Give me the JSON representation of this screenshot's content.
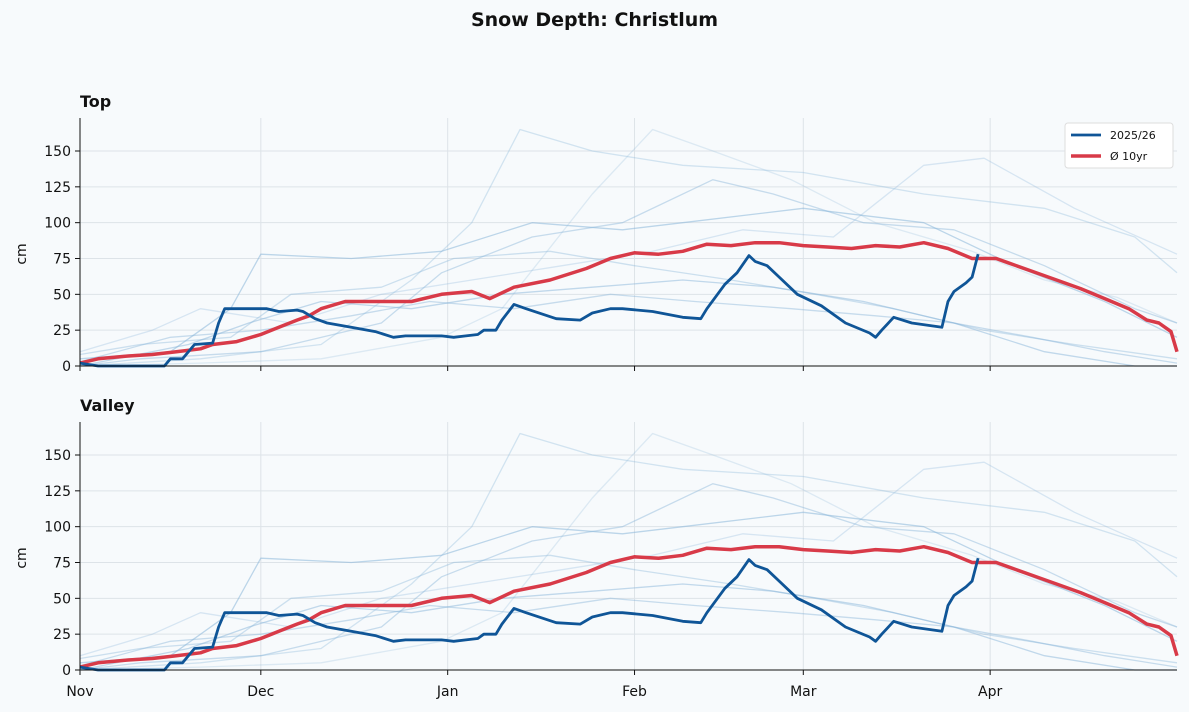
{
  "chart_data": {
    "type": "line",
    "title": "Snow Depth: Christlum",
    "ylabel": "cm",
    "ylim": [
      0,
      173
    ],
    "xlim": [
      "Nov 1",
      "Apr 30"
    ],
    "x_ticks": [
      "Nov",
      "Dec",
      "Jan",
      "Feb",
      "Mar",
      "Apr"
    ],
    "x_tick_days": [
      0,
      30,
      61,
      92,
      120,
      151
    ],
    "y_ticks": [
      0,
      25,
      50,
      75,
      100,
      125,
      150
    ],
    "grid": true,
    "legend_position": "top-right",
    "x_unit": "days since Nov 1",
    "panels": [
      {
        "title": "Top"
      },
      {
        "title": "Valley"
      }
    ],
    "colors": {
      "current": "#0f5597",
      "average": "#d83a48",
      "history": "#8ab6d9"
    },
    "series": [
      {
        "name": "2025/26",
        "role": "current",
        "points": [
          [
            0,
            2
          ],
          [
            3,
            0
          ],
          [
            14,
            0
          ],
          [
            15,
            5
          ],
          [
            17,
            5
          ],
          [
            19,
            15
          ],
          [
            22,
            16
          ],
          [
            23,
            30
          ],
          [
            24,
            40
          ],
          [
            28,
            40
          ],
          [
            31,
            40
          ],
          [
            33,
            38
          ],
          [
            36,
            39
          ],
          [
            37,
            38
          ],
          [
            39,
            33
          ],
          [
            41,
            30
          ],
          [
            45,
            27
          ],
          [
            49,
            24
          ],
          [
            52,
            20
          ],
          [
            54,
            21
          ],
          [
            60,
            21
          ],
          [
            62,
            20
          ],
          [
            64,
            21
          ],
          [
            66,
            22
          ],
          [
            67,
            25
          ],
          [
            69,
            25
          ],
          [
            70,
            32
          ],
          [
            72,
            43
          ],
          [
            74,
            40
          ],
          [
            79,
            33
          ],
          [
            83,
            32
          ],
          [
            85,
            37
          ],
          [
            88,
            40
          ],
          [
            90,
            40
          ],
          [
            95,
            38
          ],
          [
            100,
            34
          ],
          [
            103,
            33
          ],
          [
            104,
            40
          ],
          [
            107,
            57
          ],
          [
            109,
            65
          ],
          [
            111,
            77
          ],
          [
            112,
            73
          ],
          [
            114,
            70
          ],
          [
            116,
            62
          ],
          [
            119,
            50
          ],
          [
            123,
            42
          ],
          [
            127,
            30
          ],
          [
            131,
            23
          ],
          [
            132,
            20
          ],
          [
            133,
            25
          ],
          [
            135,
            34
          ],
          [
            138,
            30
          ],
          [
            143,
            27
          ],
          [
            144,
            45
          ],
          [
            145,
            52
          ],
          [
            147,
            58
          ],
          [
            148,
            62
          ],
          [
            149,
            78
          ]
        ]
      },
      {
        "name": "Ø 10yr",
        "role": "average",
        "points": [
          [
            0,
            2
          ],
          [
            3,
            5
          ],
          [
            8,
            7
          ],
          [
            12,
            8
          ],
          [
            16,
            10
          ],
          [
            20,
            12
          ],
          [
            22,
            15
          ],
          [
            26,
            17
          ],
          [
            30,
            22
          ],
          [
            33,
            27
          ],
          [
            36,
            32
          ],
          [
            38,
            35
          ],
          [
            40,
            40
          ],
          [
            44,
            45
          ],
          [
            50,
            45
          ],
          [
            55,
            45
          ],
          [
            60,
            50
          ],
          [
            65,
            52
          ],
          [
            68,
            47
          ],
          [
            72,
            55
          ],
          [
            78,
            60
          ],
          [
            84,
            68
          ],
          [
            88,
            75
          ],
          [
            92,
            79
          ],
          [
            96,
            78
          ],
          [
            100,
            80
          ],
          [
            104,
            85
          ],
          [
            108,
            84
          ],
          [
            112,
            86
          ],
          [
            116,
            86
          ],
          [
            120,
            84
          ],
          [
            124,
            83
          ],
          [
            128,
            82
          ],
          [
            132,
            84
          ],
          [
            136,
            83
          ],
          [
            140,
            86
          ],
          [
            144,
            82
          ],
          [
            148,
            75
          ],
          [
            152,
            75
          ],
          [
            154,
            72
          ],
          [
            158,
            66
          ],
          [
            162,
            60
          ],
          [
            166,
            54
          ],
          [
            170,
            47
          ],
          [
            174,
            40
          ],
          [
            177,
            32
          ],
          [
            179,
            30
          ],
          [
            181,
            24
          ],
          [
            182,
            10
          ]
        ]
      },
      {
        "role": "history",
        "points": [
          [
            0,
            0
          ],
          [
            20,
            5
          ],
          [
            40,
            15
          ],
          [
            55,
            60
          ],
          [
            65,
            100
          ],
          [
            73,
            165
          ],
          [
            85,
            150
          ],
          [
            100,
            140
          ],
          [
            120,
            135
          ],
          [
            140,
            120
          ],
          [
            160,
            110
          ],
          [
            175,
            90
          ],
          [
            182,
            65
          ]
        ]
      },
      {
        "role": "history",
        "points": [
          [
            0,
            5
          ],
          [
            15,
            10
          ],
          [
            25,
            40
          ],
          [
            30,
            78
          ],
          [
            45,
            75
          ],
          [
            60,
            80
          ],
          [
            75,
            100
          ],
          [
            90,
            95
          ],
          [
            100,
            100
          ],
          [
            120,
            110
          ],
          [
            140,
            100
          ],
          [
            155,
            70
          ],
          [
            170,
            45
          ],
          [
            182,
            20
          ]
        ]
      },
      {
        "role": "history",
        "points": [
          [
            0,
            0
          ],
          [
            10,
            5
          ],
          [
            30,
            10
          ],
          [
            50,
            30
          ],
          [
            60,
            65
          ],
          [
            75,
            90
          ],
          [
            90,
            100
          ],
          [
            105,
            130
          ],
          [
            115,
            120
          ],
          [
            130,
            100
          ],
          [
            145,
            95
          ],
          [
            160,
            70
          ],
          [
            175,
            40
          ],
          [
            182,
            30
          ]
        ]
      },
      {
        "role": "history",
        "points": [
          [
            0,
            10
          ],
          [
            12,
            25
          ],
          [
            20,
            40
          ],
          [
            35,
            30
          ],
          [
            50,
            50
          ],
          [
            65,
            60
          ],
          [
            80,
            70
          ],
          [
            95,
            80
          ],
          [
            110,
            95
          ],
          [
            125,
            90
          ],
          [
            140,
            140
          ],
          [
            150,
            145
          ],
          [
            165,
            110
          ],
          [
            182,
            78
          ]
        ]
      },
      {
        "role": "history",
        "points": [
          [
            0,
            0
          ],
          [
            18,
            15
          ],
          [
            28,
            30
          ],
          [
            40,
            45
          ],
          [
            55,
            40
          ],
          [
            70,
            50
          ],
          [
            85,
            55
          ],
          [
            100,
            60
          ],
          [
            115,
            55
          ],
          [
            130,
            45
          ],
          [
            145,
            30
          ],
          [
            160,
            10
          ],
          [
            175,
            0
          ],
          [
            182,
            0
          ]
        ]
      },
      {
        "role": "history",
        "points": [
          [
            0,
            8
          ],
          [
            10,
            15
          ],
          [
            25,
            20
          ],
          [
            35,
            50
          ],
          [
            50,
            55
          ],
          [
            62,
            75
          ],
          [
            78,
            80
          ],
          [
            92,
            70
          ],
          [
            108,
            60
          ],
          [
            122,
            50
          ],
          [
            135,
            40
          ],
          [
            150,
            25
          ],
          [
            165,
            15
          ],
          [
            182,
            5
          ]
        ]
      },
      {
        "role": "history",
        "points": [
          [
            0,
            0
          ],
          [
            20,
            2
          ],
          [
            40,
            5
          ],
          [
            60,
            20
          ],
          [
            70,
            40
          ],
          [
            85,
            120
          ],
          [
            95,
            165
          ],
          [
            105,
            150
          ],
          [
            118,
            130
          ],
          [
            132,
            100
          ],
          [
            148,
            80
          ],
          [
            160,
            60
          ],
          [
            172,
            48
          ],
          [
            182,
            30
          ]
        ]
      },
      {
        "role": "history",
        "points": [
          [
            0,
            3
          ],
          [
            15,
            20
          ],
          [
            30,
            25
          ],
          [
            45,
            35
          ],
          [
            58,
            45
          ],
          [
            72,
            40
          ],
          [
            88,
            50
          ],
          [
            102,
            45
          ],
          [
            118,
            40
          ],
          [
            132,
            35
          ],
          [
            145,
            30
          ],
          [
            158,
            20
          ],
          [
            170,
            10
          ],
          [
            182,
            2
          ]
        ]
      }
    ]
  }
}
